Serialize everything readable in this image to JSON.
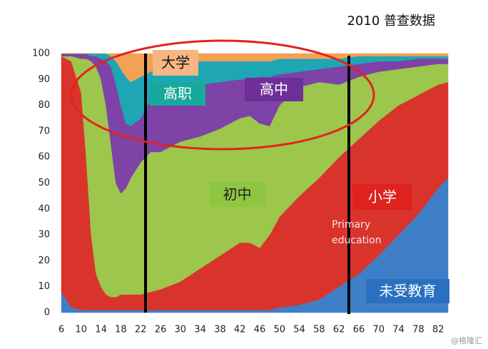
{
  "chart_data": {
    "type": "area",
    "stacked": true,
    "title": "2010 普查数据",
    "x": [
      6,
      8,
      10,
      11,
      12,
      13,
      14,
      15,
      16,
      17,
      18,
      19,
      20,
      22,
      24,
      26,
      30,
      34,
      38,
      42,
      44,
      46,
      48,
      50,
      54,
      58,
      62,
      66,
      70,
      74,
      78,
      82,
      84
    ],
    "xlim": [
      6,
      85
    ],
    "xticks": [
      6,
      10,
      14,
      18,
      22,
      26,
      30,
      34,
      38,
      42,
      46,
      50,
      54,
      58,
      62,
      66,
      70,
      74,
      78,
      82
    ],
    "ylim": [
      0,
      100
    ],
    "yticks": [
      0,
      10,
      20,
      30,
      40,
      50,
      60,
      70,
      80,
      90,
      100
    ],
    "series": [
      {
        "name": "未受教育",
        "color": "#3f7fc8",
        "values": [
          8,
          2,
          1,
          1,
          1,
          1,
          1,
          1,
          1,
          1,
          1,
          1,
          1,
          1,
          1,
          1,
          1,
          1,
          1,
          1,
          1,
          1,
          1,
          2,
          3,
          5,
          10,
          15,
          22,
          30,
          38,
          48,
          52
        ]
      },
      {
        "name": "小学",
        "color": "#d9342c",
        "values": [
          91,
          95,
          84,
          59,
          29,
          14,
          9,
          6,
          5,
          5,
          6,
          6,
          6,
          6,
          7,
          8,
          11,
          16,
          21,
          26,
          26,
          24,
          29,
          35,
          42,
          47,
          50,
          52,
          52,
          50,
          46,
          40,
          37
        ]
      },
      {
        "name": "初中",
        "color": "#9cc64c",
        "values": [
          0,
          2,
          13,
          38,
          67,
          80,
          80,
          73,
          59,
          44,
          39,
          41,
          45,
          51,
          54,
          53,
          54,
          51,
          49,
          48,
          49,
          48,
          42,
          43,
          42,
          37,
          28,
          24,
          19,
          14,
          11,
          8,
          7
        ]
      },
      {
        "name": "高中",
        "color": "#7d43a6",
        "values": [
          1,
          1,
          2,
          2,
          2,
          4,
          8,
          17,
          30,
          38,
          34,
          25,
          20,
          17,
          20,
          24,
          21,
          20,
          18,
          15,
          14,
          18,
          19,
          12,
          6,
          5,
          7,
          5,
          4,
          3,
          3,
          2,
          2
        ]
      },
      {
        "name": "高职",
        "color": "#1ea6b5",
        "values": [
          0,
          0,
          0,
          0,
          1,
          1,
          2,
          3,
          4,
          9,
          14,
          18,
          17,
          16,
          11,
          9,
          9,
          9,
          8,
          7,
          7,
          6,
          6,
          6,
          5,
          4,
          3,
          3,
          2,
          2,
          1,
          1,
          1
        ]
      },
      {
        "name": "大学",
        "color": "#f2a155",
        "values": [
          0,
          0,
          0,
          0,
          0,
          0,
          0,
          0,
          1,
          3,
          6,
          9,
          11,
          9,
          7,
          5,
          4,
          3,
          3,
          3,
          3,
          3,
          3,
          2,
          2,
          2,
          2,
          1,
          1,
          1,
          1,
          1,
          1
        ]
      }
    ],
    "annotations": [
      "Primary",
      "education"
    ],
    "watermark": "@格隆汇"
  }
}
